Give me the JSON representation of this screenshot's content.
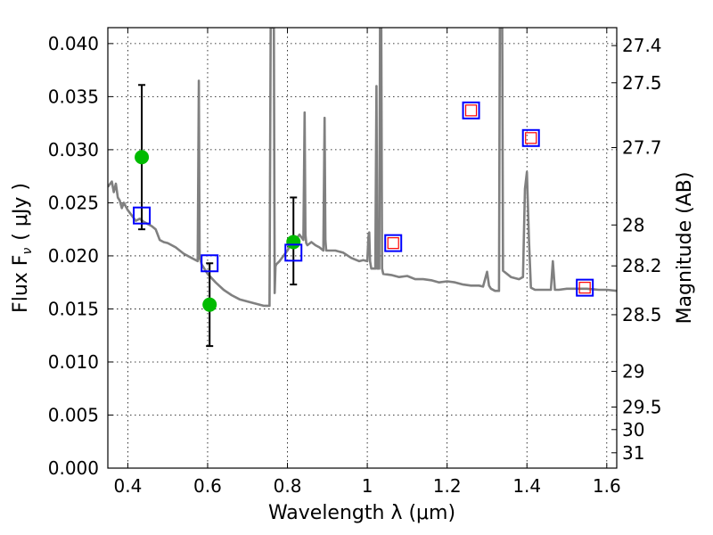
{
  "chart_data": {
    "type": "scatter",
    "xlabel": "Wavelength  λ (μm)",
    "ylabel": "Flux  F",
    "ylabel_sub": "ν",
    "ylabel_unit": "( μJy )",
    "y2label": "Magnitude (AB)",
    "xlim": [
      0.35,
      1.625
    ],
    "ylim": [
      0.0,
      0.0415
    ],
    "grid": true,
    "xticks": [
      0.4,
      0.6,
      0.8,
      1.0,
      1.2,
      1.4,
      1.6
    ],
    "xtick_labels": [
      "0.4",
      "0.6",
      "0.8",
      "1",
      "1.2",
      "1.4",
      "1.6"
    ],
    "yticks": [
      0.0,
      0.005,
      0.01,
      0.015,
      0.02,
      0.025,
      0.03,
      0.035,
      0.04
    ],
    "ytick_labels": [
      "0.000",
      "0.005",
      "0.010",
      "0.015",
      "0.020",
      "0.025",
      "0.030",
      "0.035",
      "0.040"
    ],
    "mag_ticks": [
      27.4,
      27.5,
      27.7,
      28,
      28.2,
      28.5,
      29,
      29.5,
      30,
      31
    ],
    "mag_tick_labels": [
      "27.4",
      "27.5",
      "27.7",
      "28",
      "28.2",
      "28.5",
      "29",
      "29.5",
      "30",
      "31"
    ],
    "colors": {
      "sed_line": "#808080",
      "observed": "#00bb00",
      "model_box": "#0000ff",
      "upper_box": "#ff0000"
    },
    "series": [
      {
        "kind": "line",
        "x": [
          0.35,
          0.36,
          0.365,
          0.37,
          0.375,
          0.38,
          0.385,
          0.39,
          0.4,
          0.41,
          0.42,
          0.43,
          0.44,
          0.45,
          0.46,
          0.47,
          0.48,
          0.49,
          0.5,
          0.52,
          0.54,
          0.56,
          0.575,
          0.578,
          0.58,
          0.582,
          0.585,
          0.6,
          0.62,
          0.64,
          0.66,
          0.68,
          0.7,
          0.72,
          0.74,
          0.755,
          0.758,
          0.76,
          0.762,
          0.766,
          0.768,
          0.77,
          0.772,
          0.78,
          0.79,
          0.8,
          0.81,
          0.82,
          0.83,
          0.84,
          0.843,
          0.845,
          0.847,
          0.85,
          0.86,
          0.87,
          0.88,
          0.89,
          0.893,
          0.895,
          0.897,
          0.9,
          0.92,
          0.94,
          0.96,
          0.98,
          0.99,
          1.0,
          1.003,
          1.005,
          1.007,
          1.01,
          1.02,
          1.023,
          1.025,
          1.03,
          1.032,
          1.035,
          1.037,
          1.04,
          1.06,
          1.08,
          1.1,
          1.12,
          1.14,
          1.16,
          1.18,
          1.2,
          1.22,
          1.24,
          1.26,
          1.28,
          1.29,
          1.3,
          1.305,
          1.31,
          1.32,
          1.33,
          1.332,
          1.335,
          1.338,
          1.34,
          1.36,
          1.38,
          1.39,
          1.395,
          1.4,
          1.405,
          1.41,
          1.42,
          1.44,
          1.46,
          1.465,
          1.47,
          1.48,
          1.5,
          1.52,
          1.55,
          1.58,
          1.6,
          1.625
        ],
        "y": [
          0.0265,
          0.027,
          0.026,
          0.0268,
          0.0255,
          0.0252,
          0.0245,
          0.025,
          0.0243,
          0.0238,
          0.0233,
          0.0235,
          0.0232,
          0.023,
          0.0228,
          0.0225,
          0.0215,
          0.0213,
          0.0212,
          0.0208,
          0.0202,
          0.0198,
          0.0195,
          0.0365,
          0.0198,
          0.0196,
          0.0192,
          0.0183,
          0.0175,
          0.0168,
          0.0163,
          0.0159,
          0.0157,
          0.0155,
          0.0153,
          0.0153,
          0.0415,
          0.0415,
          0.0415,
          0.0415,
          0.0165,
          0.019,
          0.0192,
          0.0195,
          0.02,
          0.0205,
          0.0212,
          0.0215,
          0.022,
          0.0215,
          0.0335,
          0.022,
          0.0212,
          0.021,
          0.0213,
          0.021,
          0.0208,
          0.0205,
          0.033,
          0.0215,
          0.0205,
          0.0205,
          0.0205,
          0.0203,
          0.0198,
          0.0195,
          0.0196,
          0.0195,
          0.0218,
          0.0222,
          0.0195,
          0.0188,
          0.0188,
          0.036,
          0.0188,
          0.0188,
          0.0415,
          0.0415,
          0.0188,
          0.0183,
          0.0182,
          0.018,
          0.0181,
          0.0178,
          0.0178,
          0.0177,
          0.0175,
          0.0176,
          0.0175,
          0.0173,
          0.0172,
          0.0172,
          0.0171,
          0.0185,
          0.0172,
          0.0169,
          0.0167,
          0.0167,
          0.0415,
          0.0415,
          0.0415,
          0.0186,
          0.018,
          0.0178,
          0.018,
          0.0263,
          0.0279,
          0.0215,
          0.017,
          0.0168,
          0.0168,
          0.0168,
          0.0195,
          0.0168,
          0.0168,
          0.0169,
          0.0169,
          0.0169,
          0.0168,
          0.0168,
          0.0167
        ],
        "name": ""
      },
      {
        "kind": "observed",
        "x": [
          0.435,
          0.605,
          0.815
        ],
        "y": [
          0.0293,
          0.0154,
          0.0213
        ],
        "yerr_low": [
          0.0225,
          0.0115,
          0.0173
        ],
        "yerr_high": [
          0.0361,
          0.0193,
          0.0255
        ]
      },
      {
        "kind": "model_box",
        "x": [
          0.435,
          0.605,
          0.815,
          1.065,
          1.26,
          1.41,
          1.545
        ],
        "y": [
          0.0238,
          0.0193,
          0.0203,
          0.0212,
          0.0337,
          0.0311,
          0.017
        ]
      },
      {
        "kind": "upper_box",
        "x": [
          1.065,
          1.26,
          1.41,
          1.545
        ],
        "y": [
          0.0212,
          0.0337,
          0.0311,
          0.017
        ]
      }
    ]
  }
}
